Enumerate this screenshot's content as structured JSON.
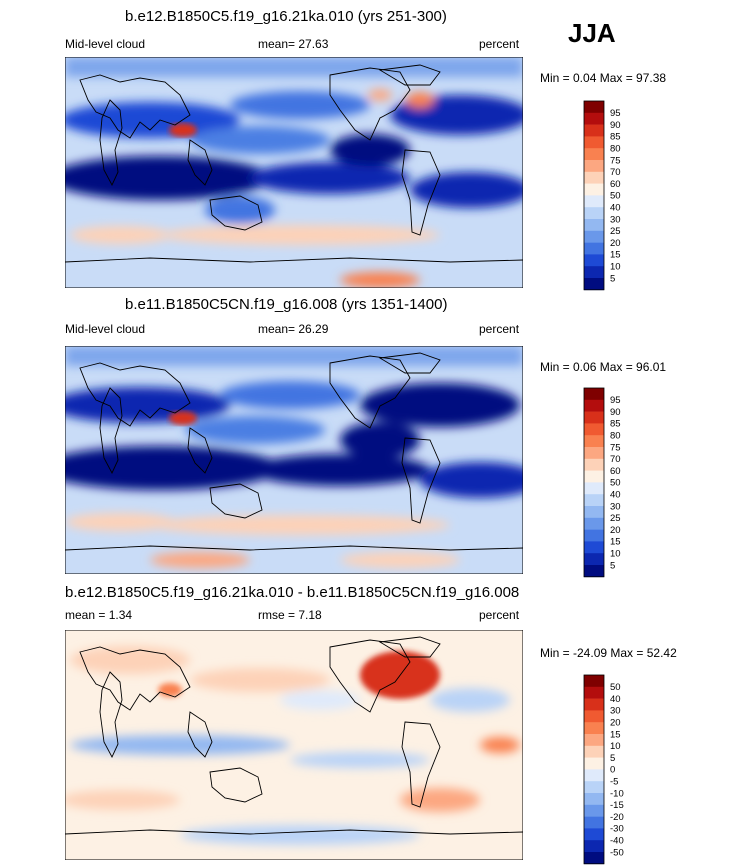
{
  "season": "JJA",
  "panels": [
    {
      "title": "b.e12.B1850C5.f19_g16.21ka.010 (yrs 251-300)",
      "left_label": "Mid-level cloud",
      "center_label": "mean=  27.63",
      "right_label": "percent",
      "minmax": "Min =  0.04 Max =  97.38",
      "colorbar": {
        "levels": [
          "95",
          "90",
          "85",
          "80",
          "75",
          "70",
          "60",
          "50",
          "40",
          "30",
          "25",
          "20",
          "15",
          "10",
          "5"
        ],
        "colors": [
          "#7f0000",
          "#b30d0d",
          "#d8301a",
          "#f05a31",
          "#f98150",
          "#fca781",
          "#fdd2b8",
          "#fdf1e4",
          "#dfeafb",
          "#b9d3f7",
          "#93b8f1",
          "#6a98ea",
          "#4274e1",
          "#1e4ad5",
          "#0c27b0",
          "#000c80"
        ]
      }
    },
    {
      "title": "b.e11.B1850C5CN.f19_g16.008 (yrs 1351-1400)",
      "left_label": "Mid-level cloud",
      "center_label": "mean=  26.29",
      "right_label": "percent",
      "minmax": "Min =  0.06 Max =  96.01",
      "colorbar": {
        "levels": [
          "95",
          "90",
          "85",
          "80",
          "75",
          "70",
          "60",
          "50",
          "40",
          "30",
          "25",
          "20",
          "15",
          "10",
          "5"
        ],
        "colors": [
          "#7f0000",
          "#b30d0d",
          "#d8301a",
          "#f05a31",
          "#f98150",
          "#fca781",
          "#fdd2b8",
          "#fdf1e4",
          "#dfeafb",
          "#b9d3f7",
          "#93b8f1",
          "#6a98ea",
          "#4274e1",
          "#1e4ad5",
          "#0c27b0",
          "#000c80"
        ]
      }
    },
    {
      "title": "b.e12.B1850C5.f19_g16.21ka.010 - b.e11.B1850C5CN.f19_g16.008",
      "left_label": "mean =   1.34",
      "center_label": "rmse =   7.18",
      "right_label": "percent",
      "minmax": "Min = -24.09 Max =  52.42",
      "colorbar": {
        "levels": [
          "50",
          "40",
          "30",
          "20",
          "15",
          "10",
          "5",
          "0",
          "-5",
          "-10",
          "-15",
          "-20",
          "-30",
          "-40",
          "-50"
        ],
        "colors": [
          "#7f0000",
          "#b30d0d",
          "#d8301a",
          "#f05a31",
          "#f98150",
          "#fca781",
          "#fdd2b8",
          "#fdf1e4",
          "#dfeafb",
          "#b9d3f7",
          "#93b8f1",
          "#6a98ea",
          "#4274e1",
          "#1e4ad5",
          "#0c27b0",
          "#000c80"
        ]
      }
    }
  ],
  "chart_data": [
    {
      "type": "heatmap",
      "title": "b.e12.B1850C5.f19_g16.21ka.010 (yrs 251-300)",
      "variable": "Mid-level cloud",
      "units": "percent",
      "mean": 27.63,
      "min": 0.04,
      "max": 97.38,
      "contour_levels": [
        5,
        10,
        15,
        20,
        25,
        30,
        40,
        50,
        60,
        70,
        75,
        80,
        85,
        90,
        95
      ]
    },
    {
      "type": "heatmap",
      "title": "b.e11.B1850C5CN.f19_g16.008 (yrs 1351-1400)",
      "variable": "Mid-level cloud",
      "units": "percent",
      "mean": 26.29,
      "min": 0.06,
      "max": 96.01,
      "contour_levels": [
        5,
        10,
        15,
        20,
        25,
        30,
        40,
        50,
        60,
        70,
        75,
        80,
        85,
        90,
        95
      ]
    },
    {
      "type": "heatmap",
      "title": "b.e12.B1850C5.f19_g16.21ka.010 - b.e11.B1850C5CN.f19_g16.008",
      "units": "percent",
      "mean": 1.34,
      "rmse": 7.18,
      "min": -24.09,
      "max": 52.42,
      "contour_levels": [
        -50,
        -40,
        -30,
        -20,
        -15,
        -10,
        -5,
        0,
        5,
        10,
        15,
        20,
        30,
        40,
        50
      ]
    }
  ]
}
